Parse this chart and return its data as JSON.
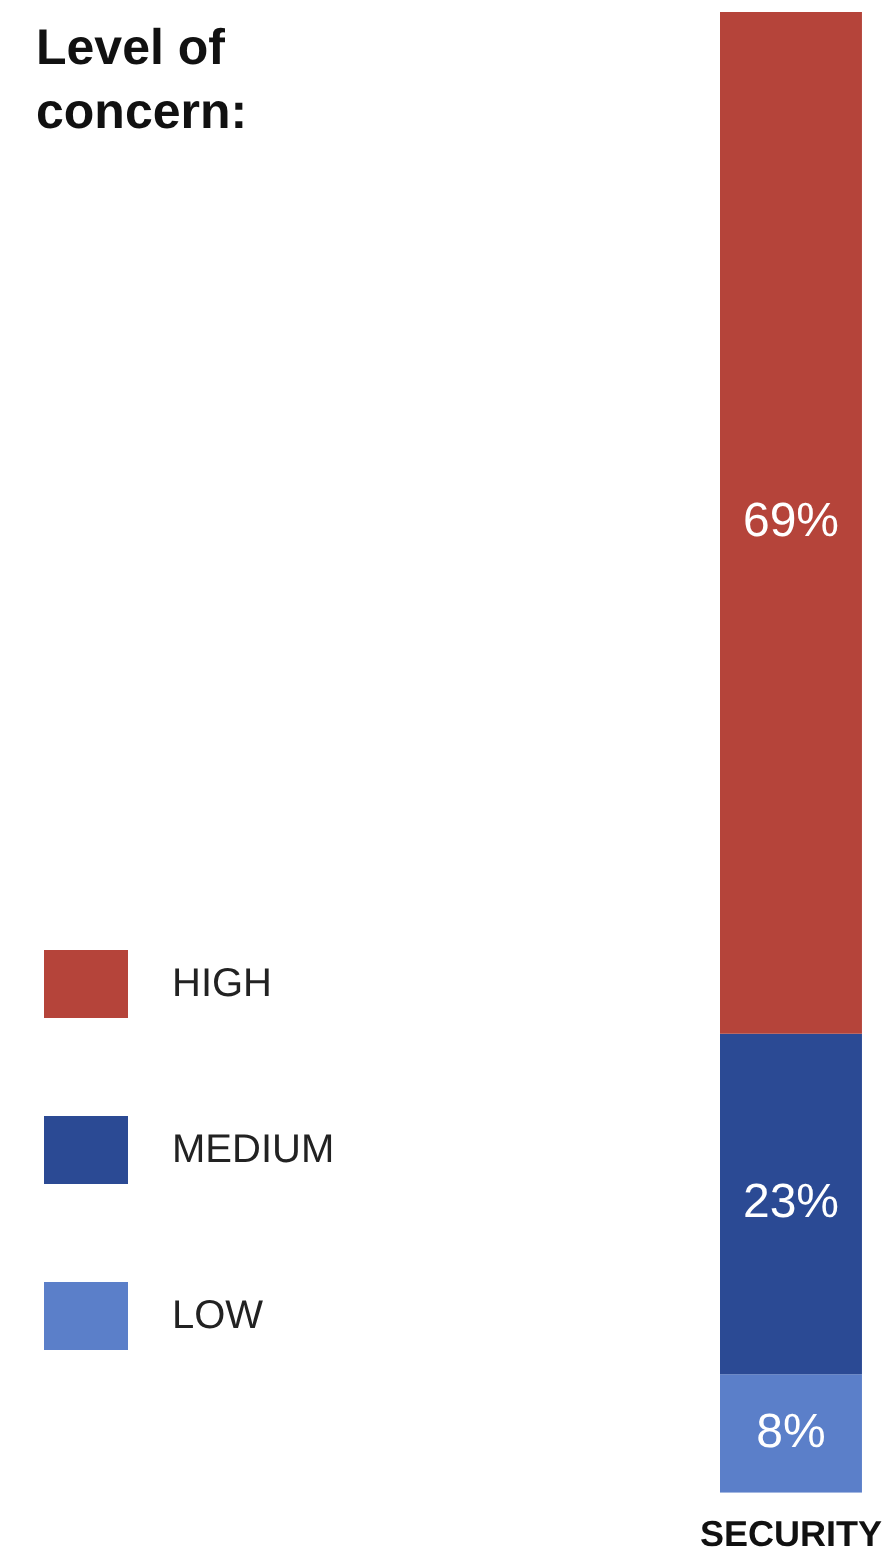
{
  "chart_data": {
    "type": "bar",
    "stacked": true,
    "legend_title": "Level of concern:",
    "legend": "left",
    "categories": [
      "SECURITY"
    ],
    "series": [
      {
        "name": "LOW",
        "color": "#5b7fc9",
        "values": [
          8
        ],
        "value_labels": [
          "8%"
        ]
      },
      {
        "name": "MEDIUM",
        "color": "#2b4a94",
        "values": [
          23
        ],
        "value_labels": [
          "23%"
        ]
      },
      {
        "name": "HIGH",
        "color": "#b5443a",
        "values": [
          69
        ],
        "value_labels": [
          "69%"
        ]
      }
    ]
  }
}
